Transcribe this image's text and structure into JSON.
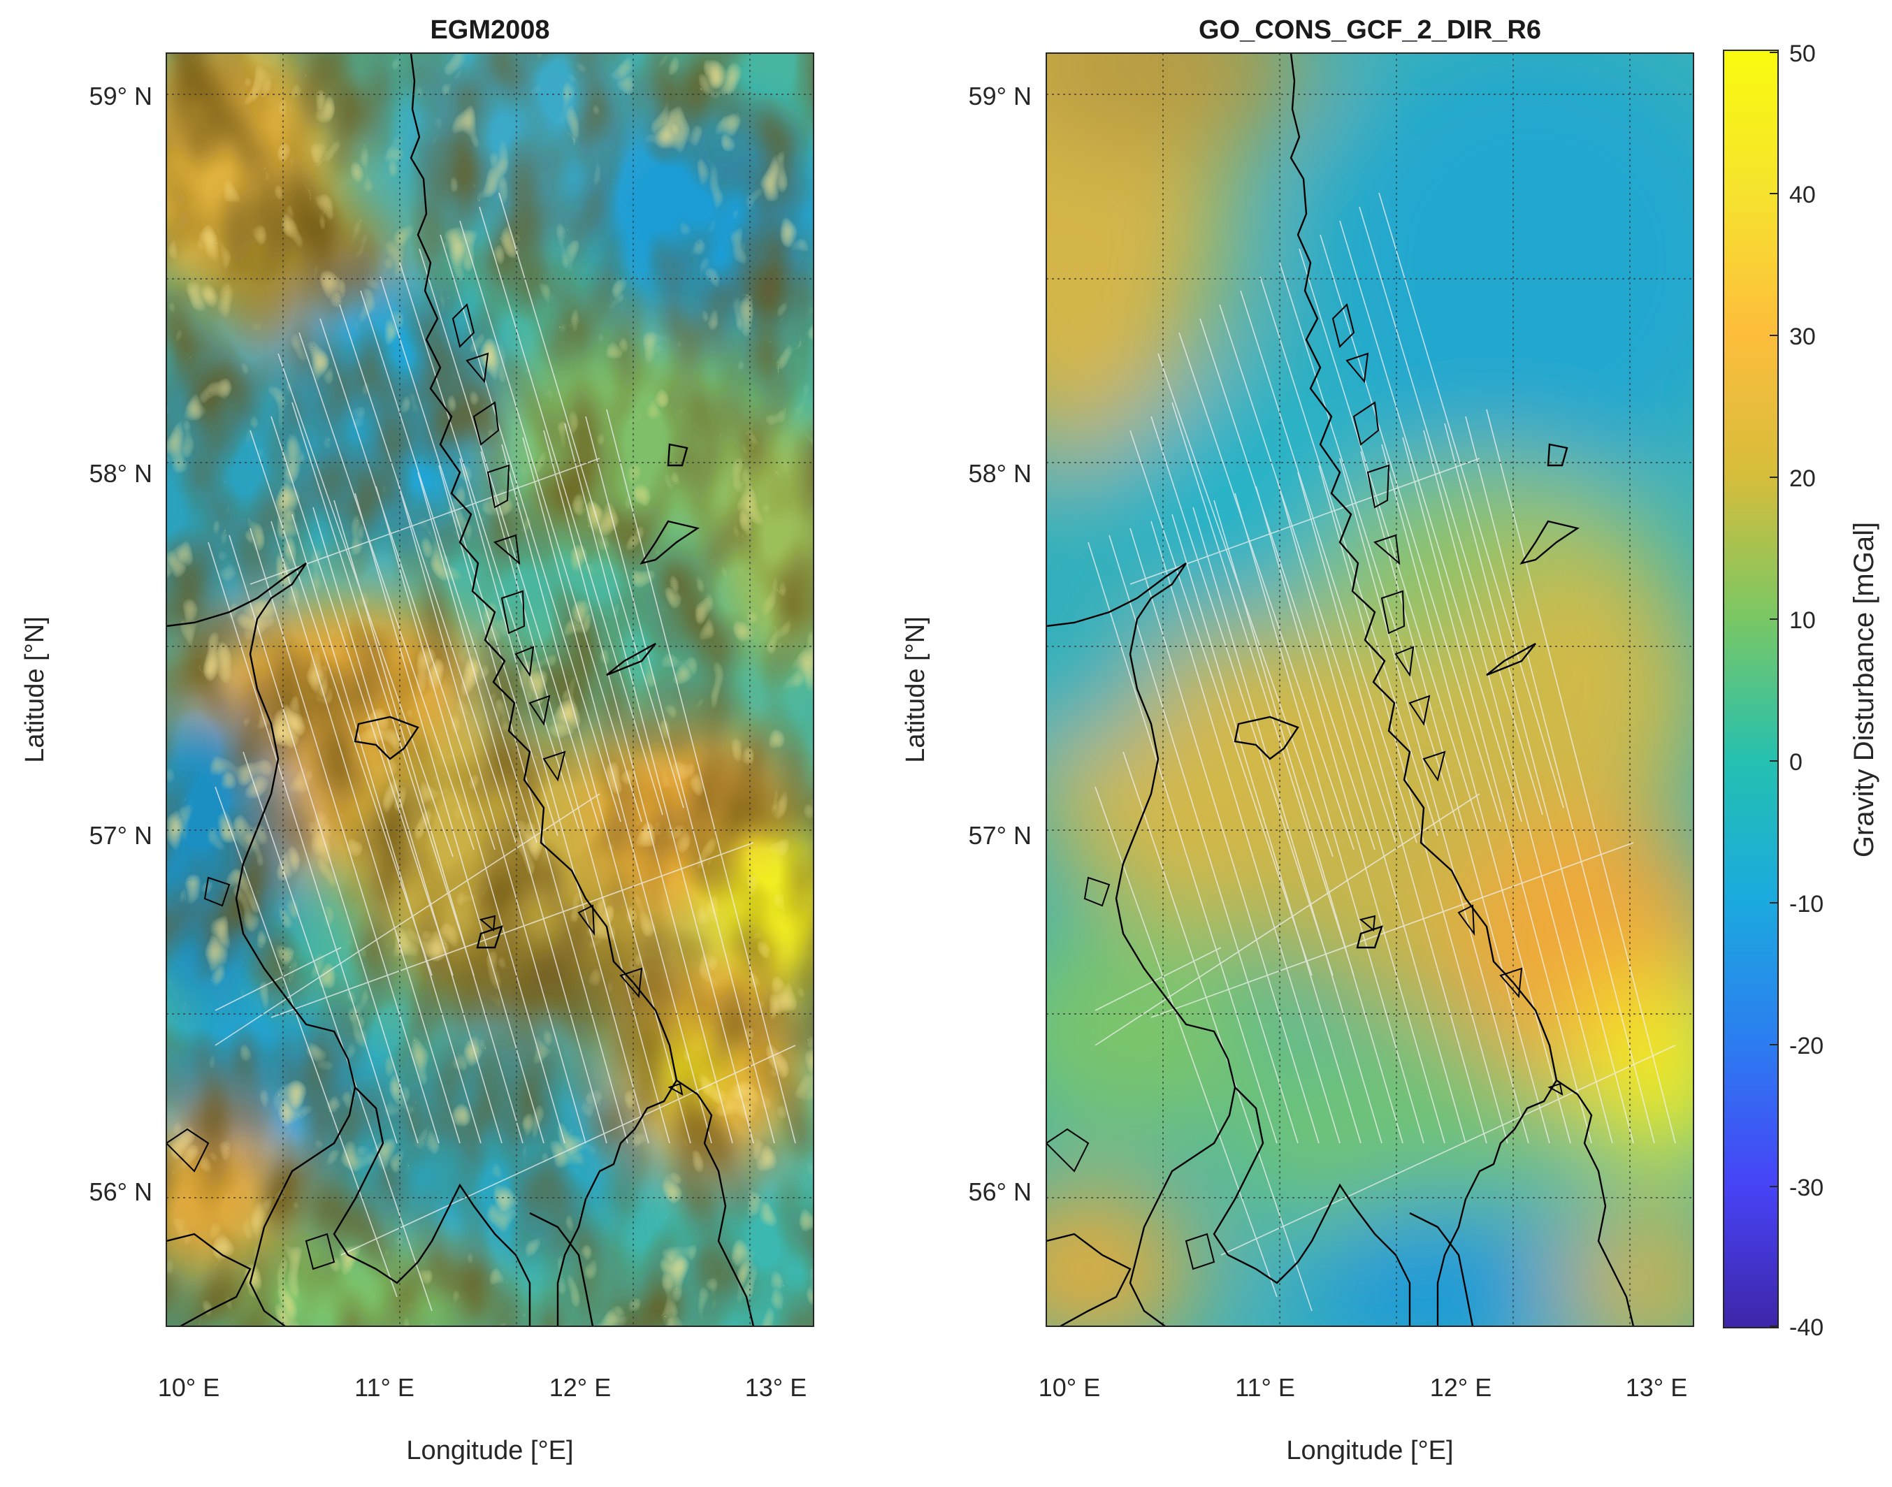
{
  "figure": {
    "panels": [
      {
        "title": "EGM2008",
        "xlabel": "Longitude [°E]",
        "ylabel": "Latitude [°N]",
        "x_ticks": [
          "10° E",
          "11° E",
          "12° E",
          "13° E"
        ],
        "y_ticks": [
          "59° N",
          "58° N",
          "57° N",
          "56° N"
        ],
        "field_character": "high-resolution, strongly textured"
      },
      {
        "title": "GO_CONS_GCF_2_DIR_R6",
        "xlabel": "Longitude [°E]",
        "ylabel": "Latitude [°N]",
        "x_ticks": [
          "10° E",
          "11° E",
          "12° E",
          "13° E"
        ],
        "y_ticks": [
          "59° N",
          "58° N",
          "57° N",
          "56° N"
        ],
        "field_character": "smooth, long-wavelength"
      }
    ],
    "colorbar": {
      "label": "Gravity Disturbance [mGal]",
      "ticks": [
        "50",
        "40",
        "30",
        "20",
        "10",
        "0",
        "-10",
        "-20",
        "-30",
        "-40"
      ],
      "range": [
        -40,
        50
      ],
      "colormap": "parula",
      "colors": [
        "#3e26a8",
        "#4743f6",
        "#2c7cf0",
        "#1ca9df",
        "#25c0b0",
        "#7ac764",
        "#d6bd3b",
        "#fdbd3c",
        "#f6e32e",
        "#f9fb0e"
      ]
    },
    "map": {
      "lon_range": [
        9.94,
        13.23
      ],
      "lat_range": [
        55.63,
        59.12
      ],
      "grid": "dotted",
      "overlays": [
        "coastline (black)",
        "airborne survey track lines (white)"
      ]
    }
  }
}
